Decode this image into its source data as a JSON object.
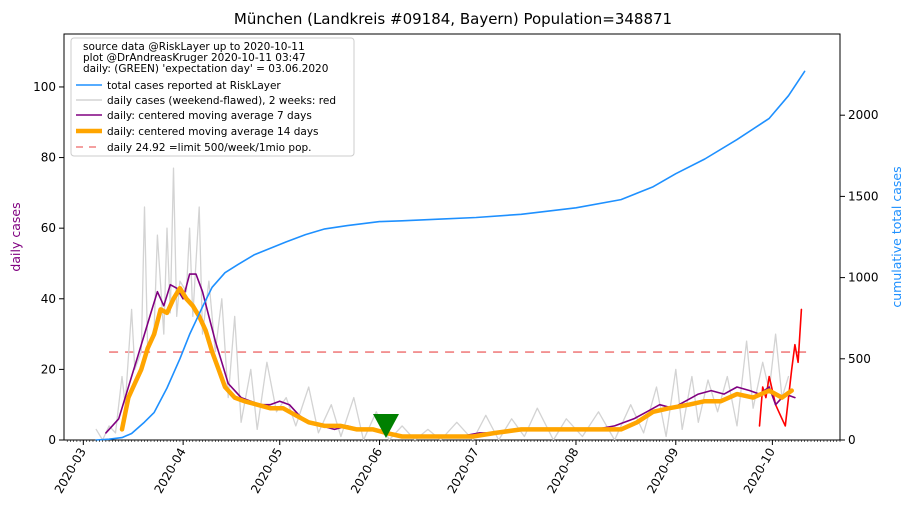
{
  "chart_data": {
    "type": "line",
    "title": "München (Landkreis #09184, Bayern) Population=348871",
    "ylabel_left": "daily cases",
    "ylabel_right": "cumulative total cases",
    "ylim_left": [
      0,
      115
    ],
    "ylim_right": [
      0,
      2500
    ],
    "yticks_left": [
      0,
      20,
      40,
      60,
      80,
      100
    ],
    "yticks_right": [
      0,
      500,
      1000,
      1500,
      2000
    ],
    "xlim": [
      "2020-02-24",
      "2020-10-22"
    ],
    "x_ticks": [
      "2020-03",
      "2020-04",
      "2020-05",
      "2020-06",
      "2020-07",
      "2020-08",
      "2020-09",
      "2020-10"
    ],
    "x_tick_dates": [
      "2020-03-01",
      "2020-04-01",
      "2020-05-01",
      "2020-06-01",
      "2020-07-01",
      "2020-08-01",
      "2020-09-01",
      "2020-10-01"
    ],
    "legend_position": "top-left",
    "legend_header": [
      "source data @RiskLayer up to 2020-10-11",
      "plot @DrAndreasKruger 2020-10-11 03:47",
      "daily: (GREEN) 'expectation day' = 03.06.2020"
    ],
    "legend": [
      {
        "key": "total",
        "label": "total cases reported at RiskLayer",
        "color": "#1e90ff"
      },
      {
        "key": "daily",
        "label": "daily cases (weekend-flawed), 2 weeks: red",
        "color": "#d3d3d3"
      },
      {
        "key": "ma7",
        "label": "daily: centered moving average 7 days",
        "color": "#800080"
      },
      {
        "key": "ma14",
        "label": "daily: centered moving average 14 days",
        "color": "#ffa500"
      },
      {
        "key": "limit",
        "label": "daily 24.92 =limit 500/week/1mio pop.",
        "color": "#f08080"
      }
    ],
    "expectation_day": "2020-06-03",
    "limit_value": 24.92,
    "limit_range": [
      "2020-03-09",
      "2020-10-12"
    ],
    "series": [
      {
        "key": "total",
        "axis": "right",
        "points": [
          [
            "2020-03-05",
            0
          ],
          [
            "2020-03-09",
            5
          ],
          [
            "2020-03-13",
            15
          ],
          [
            "2020-03-16",
            40
          ],
          [
            "2020-03-20",
            110
          ],
          [
            "2020-03-23",
            170
          ],
          [
            "2020-03-27",
            320
          ],
          [
            "2020-03-31",
            500
          ],
          [
            "2020-04-03",
            650
          ],
          [
            "2020-04-07",
            820
          ],
          [
            "2020-04-10",
            940
          ],
          [
            "2020-04-14",
            1030
          ],
          [
            "2020-04-18",
            1080
          ],
          [
            "2020-04-23",
            1140
          ],
          [
            "2020-04-28",
            1180
          ],
          [
            "2020-05-03",
            1220
          ],
          [
            "2020-05-09",
            1265
          ],
          [
            "2020-05-15",
            1300
          ],
          [
            "2020-05-22",
            1320
          ],
          [
            "2020-06-01",
            1345
          ],
          [
            "2020-06-08",
            1350
          ],
          [
            "2020-06-20",
            1360
          ],
          [
            "2020-07-01",
            1370
          ],
          [
            "2020-07-15",
            1390
          ],
          [
            "2020-08-01",
            1430
          ],
          [
            "2020-08-15",
            1480
          ],
          [
            "2020-08-25",
            1560
          ],
          [
            "2020-09-01",
            1640
          ],
          [
            "2020-09-10",
            1730
          ],
          [
            "2020-09-20",
            1850
          ],
          [
            "2020-09-30",
            1980
          ],
          [
            "2020-10-06",
            2120
          ],
          [
            "2020-10-11",
            2270
          ]
        ]
      },
      {
        "key": "daily",
        "axis": "left",
        "points": [
          [
            "2020-03-05",
            3
          ],
          [
            "2020-03-07",
            0
          ],
          [
            "2020-03-09",
            4
          ],
          [
            "2020-03-11",
            2
          ],
          [
            "2020-03-13",
            18
          ],
          [
            "2020-03-14",
            10
          ],
          [
            "2020-03-16",
            37
          ],
          [
            "2020-03-17",
            20
          ],
          [
            "2020-03-19",
            25
          ],
          [
            "2020-03-20",
            66
          ],
          [
            "2020-03-21",
            25
          ],
          [
            "2020-03-23",
            32
          ],
          [
            "2020-03-24",
            58
          ],
          [
            "2020-03-26",
            30
          ],
          [
            "2020-03-27",
            60
          ],
          [
            "2020-03-28",
            36
          ],
          [
            "2020-03-29",
            77
          ],
          [
            "2020-03-30",
            35
          ],
          [
            "2020-03-31",
            45
          ],
          [
            "2020-04-02",
            42
          ],
          [
            "2020-04-03",
            60
          ],
          [
            "2020-04-04",
            35
          ],
          [
            "2020-04-06",
            66
          ],
          [
            "2020-04-07",
            30
          ],
          [
            "2020-04-09",
            45
          ],
          [
            "2020-04-11",
            25
          ],
          [
            "2020-04-13",
            40
          ],
          [
            "2020-04-15",
            12
          ],
          [
            "2020-04-17",
            35
          ],
          [
            "2020-04-19",
            5
          ],
          [
            "2020-04-22",
            20
          ],
          [
            "2020-04-24",
            3
          ],
          [
            "2020-04-27",
            22
          ],
          [
            "2020-04-30",
            8
          ],
          [
            "2020-05-03",
            12
          ],
          [
            "2020-05-06",
            4
          ],
          [
            "2020-05-10",
            15
          ],
          [
            "2020-05-13",
            2
          ],
          [
            "2020-05-17",
            10
          ],
          [
            "2020-05-20",
            1
          ],
          [
            "2020-05-24",
            12
          ],
          [
            "2020-05-27",
            0
          ],
          [
            "2020-05-31",
            8
          ],
          [
            "2020-06-04",
            0
          ],
          [
            "2020-06-08",
            4
          ],
          [
            "2020-06-12",
            0
          ],
          [
            "2020-06-16",
            3
          ],
          [
            "2020-06-20",
            0
          ],
          [
            "2020-06-25",
            5
          ],
          [
            "2020-06-30",
            0
          ],
          [
            "2020-07-04",
            7
          ],
          [
            "2020-07-08",
            0
          ],
          [
            "2020-07-12",
            6
          ],
          [
            "2020-07-16",
            1
          ],
          [
            "2020-07-20",
            9
          ],
          [
            "2020-07-25",
            0
          ],
          [
            "2020-07-29",
            6
          ],
          [
            "2020-08-03",
            1
          ],
          [
            "2020-08-08",
            8
          ],
          [
            "2020-08-13",
            0
          ],
          [
            "2020-08-18",
            10
          ],
          [
            "2020-08-22",
            2
          ],
          [
            "2020-08-26",
            15
          ],
          [
            "2020-08-29",
            1
          ],
          [
            "2020-09-01",
            20
          ],
          [
            "2020-09-03",
            3
          ],
          [
            "2020-09-06",
            18
          ],
          [
            "2020-09-08",
            5
          ],
          [
            "2020-09-11",
            17
          ],
          [
            "2020-09-14",
            8
          ],
          [
            "2020-09-17",
            18
          ],
          [
            "2020-09-20",
            4
          ],
          [
            "2020-09-23",
            28
          ],
          [
            "2020-09-25",
            9
          ],
          [
            "2020-09-28",
            22
          ],
          [
            "2020-09-30",
            14
          ],
          [
            "2020-10-02",
            30
          ],
          [
            "2020-10-04",
            12
          ],
          [
            "2020-10-06",
            18
          ]
        ]
      },
      {
        "key": "red",
        "axis": "left",
        "color": "#ff0000",
        "points": [
          [
            "2020-09-27",
            4
          ],
          [
            "2020-09-28",
            15
          ],
          [
            "2020-09-29",
            12
          ],
          [
            "2020-09-30",
            18
          ],
          [
            "2020-10-01",
            14
          ],
          [
            "2020-10-02",
            10
          ],
          [
            "2020-10-03",
            8
          ],
          [
            "2020-10-04",
            6
          ],
          [
            "2020-10-05",
            4
          ],
          [
            "2020-10-06",
            12
          ],
          [
            "2020-10-07",
            20
          ],
          [
            "2020-10-08",
            27
          ],
          [
            "2020-10-09",
            22
          ],
          [
            "2020-10-10",
            37
          ]
        ]
      },
      {
        "key": "ma7",
        "axis": "left",
        "points": [
          [
            "2020-03-08",
            2
          ],
          [
            "2020-03-10",
            4
          ],
          [
            "2020-03-12",
            6
          ],
          [
            "2020-03-14",
            12
          ],
          [
            "2020-03-16",
            18
          ],
          [
            "2020-03-18",
            24
          ],
          [
            "2020-03-20",
            30
          ],
          [
            "2020-03-22",
            36
          ],
          [
            "2020-03-24",
            42
          ],
          [
            "2020-03-26",
            38
          ],
          [
            "2020-03-28",
            44
          ],
          [
            "2020-03-30",
            43
          ],
          [
            "2020-04-01",
            40
          ],
          [
            "2020-04-03",
            47
          ],
          [
            "2020-04-05",
            47
          ],
          [
            "2020-04-07",
            42
          ],
          [
            "2020-04-09",
            35
          ],
          [
            "2020-04-11",
            28
          ],
          [
            "2020-04-13",
            22
          ],
          [
            "2020-04-15",
            16
          ],
          [
            "2020-04-17",
            14
          ],
          [
            "2020-04-19",
            12
          ],
          [
            "2020-04-22",
            11
          ],
          [
            "2020-04-25",
            10
          ],
          [
            "2020-04-28",
            10
          ],
          [
            "2020-05-01",
            11
          ],
          [
            "2020-05-04",
            10
          ],
          [
            "2020-05-07",
            7
          ],
          [
            "2020-05-10",
            5
          ],
          [
            "2020-05-14",
            4
          ],
          [
            "2020-05-18",
            3
          ],
          [
            "2020-05-22",
            4
          ],
          [
            "2020-05-26",
            3
          ],
          [
            "2020-05-30",
            3
          ],
          [
            "2020-06-03",
            2
          ],
          [
            "2020-06-08",
            1
          ],
          [
            "2020-06-14",
            1
          ],
          [
            "2020-06-20",
            1
          ],
          [
            "2020-06-26",
            1
          ],
          [
            "2020-07-02",
            2
          ],
          [
            "2020-07-08",
            2
          ],
          [
            "2020-07-14",
            3
          ],
          [
            "2020-07-20",
            3
          ],
          [
            "2020-07-26",
            3
          ],
          [
            "2020-08-01",
            3
          ],
          [
            "2020-08-07",
            3
          ],
          [
            "2020-08-13",
            4
          ],
          [
            "2020-08-19",
            6
          ],
          [
            "2020-08-23",
            8
          ],
          [
            "2020-08-27",
            10
          ],
          [
            "2020-08-31",
            9
          ],
          [
            "2020-09-04",
            11
          ],
          [
            "2020-09-08",
            13
          ],
          [
            "2020-09-12",
            14
          ],
          [
            "2020-09-16",
            13
          ],
          [
            "2020-09-20",
            15
          ],
          [
            "2020-09-24",
            14
          ],
          [
            "2020-09-27",
            13
          ],
          [
            "2020-09-30",
            15
          ],
          [
            "2020-10-02",
            10
          ],
          [
            "2020-10-05",
            13
          ],
          [
            "2020-10-08",
            12
          ]
        ]
      },
      {
        "key": "ma14",
        "axis": "left",
        "points": [
          [
            "2020-03-13",
            3
          ],
          [
            "2020-03-15",
            12
          ],
          [
            "2020-03-17",
            16
          ],
          [
            "2020-03-19",
            20
          ],
          [
            "2020-03-21",
            26
          ],
          [
            "2020-03-23",
            30
          ],
          [
            "2020-03-25",
            37
          ],
          [
            "2020-03-27",
            36
          ],
          [
            "2020-03-29",
            40
          ],
          [
            "2020-03-31",
            43
          ],
          [
            "2020-04-02",
            40
          ],
          [
            "2020-04-04",
            38
          ],
          [
            "2020-04-06",
            35
          ],
          [
            "2020-04-08",
            31
          ],
          [
            "2020-04-10",
            25
          ],
          [
            "2020-04-12",
            20
          ],
          [
            "2020-04-14",
            15
          ],
          [
            "2020-04-17",
            12
          ],
          [
            "2020-04-20",
            11
          ],
          [
            "2020-04-24",
            10
          ],
          [
            "2020-04-28",
            9
          ],
          [
            "2020-05-02",
            9
          ],
          [
            "2020-05-06",
            7
          ],
          [
            "2020-05-10",
            5
          ],
          [
            "2020-05-15",
            4
          ],
          [
            "2020-05-20",
            4
          ],
          [
            "2020-05-25",
            3
          ],
          [
            "2020-05-30",
            3
          ],
          [
            "2020-06-03",
            2
          ],
          [
            "2020-06-08",
            1
          ],
          [
            "2020-06-15",
            1
          ],
          [
            "2020-06-22",
            1
          ],
          [
            "2020-06-30",
            1
          ],
          [
            "2020-07-07",
            2
          ],
          [
            "2020-07-15",
            3
          ],
          [
            "2020-07-25",
            3
          ],
          [
            "2020-08-05",
            3
          ],
          [
            "2020-08-15",
            3
          ],
          [
            "2020-08-20",
            5
          ],
          [
            "2020-08-25",
            8
          ],
          [
            "2020-08-30",
            9
          ],
          [
            "2020-09-05",
            10
          ],
          [
            "2020-09-10",
            11
          ],
          [
            "2020-09-15",
            11
          ],
          [
            "2020-09-20",
            13
          ],
          [
            "2020-09-25",
            12
          ],
          [
            "2020-09-30",
            14
          ],
          [
            "2020-10-04",
            12
          ],
          [
            "2020-10-07",
            14
          ]
        ]
      }
    ]
  }
}
